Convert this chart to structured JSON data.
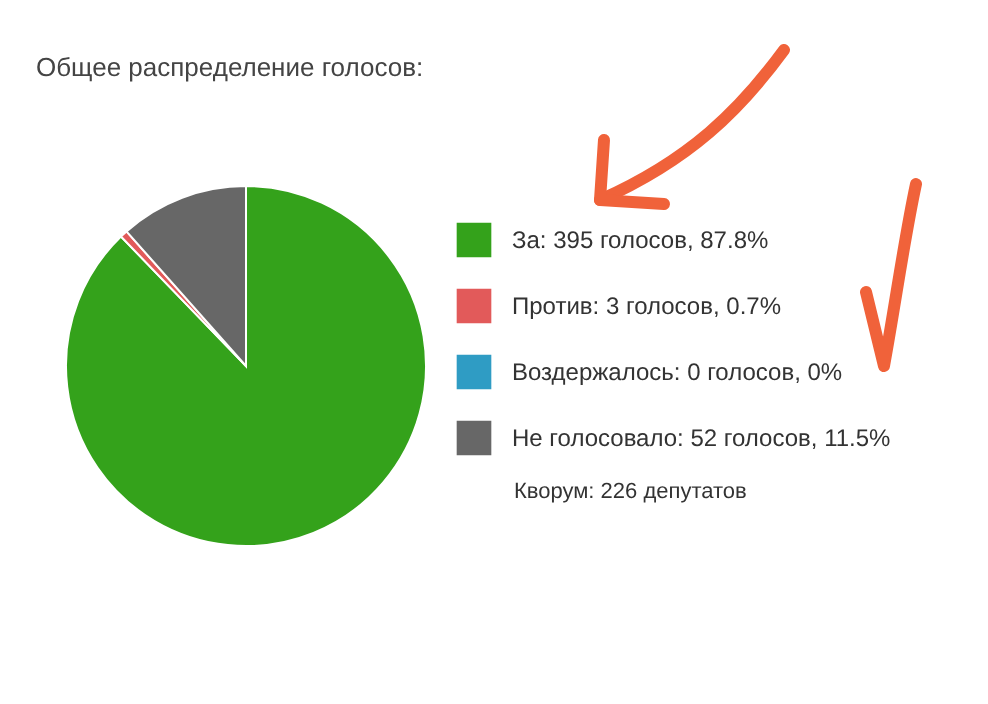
{
  "chart_data": {
    "type": "pie",
    "title": "Общее распределение голосов:",
    "categories": [
      "За",
      "Против",
      "Воздержалось",
      "Не голосовало"
    ],
    "values": [
      395,
      3,
      0,
      52
    ],
    "value_labels": [
      "395 голосов, 87.8%",
      "3 голосов, 0.7%",
      "0 голосов, 0%",
      "52 голосов, 11.5%"
    ],
    "colors": [
      "#34a21b",
      "#e25a5a",
      "#2f9cc4",
      "#676767"
    ],
    "legend": "right",
    "annotations": [
      "Кворум: 226 депутатов"
    ]
  }
}
